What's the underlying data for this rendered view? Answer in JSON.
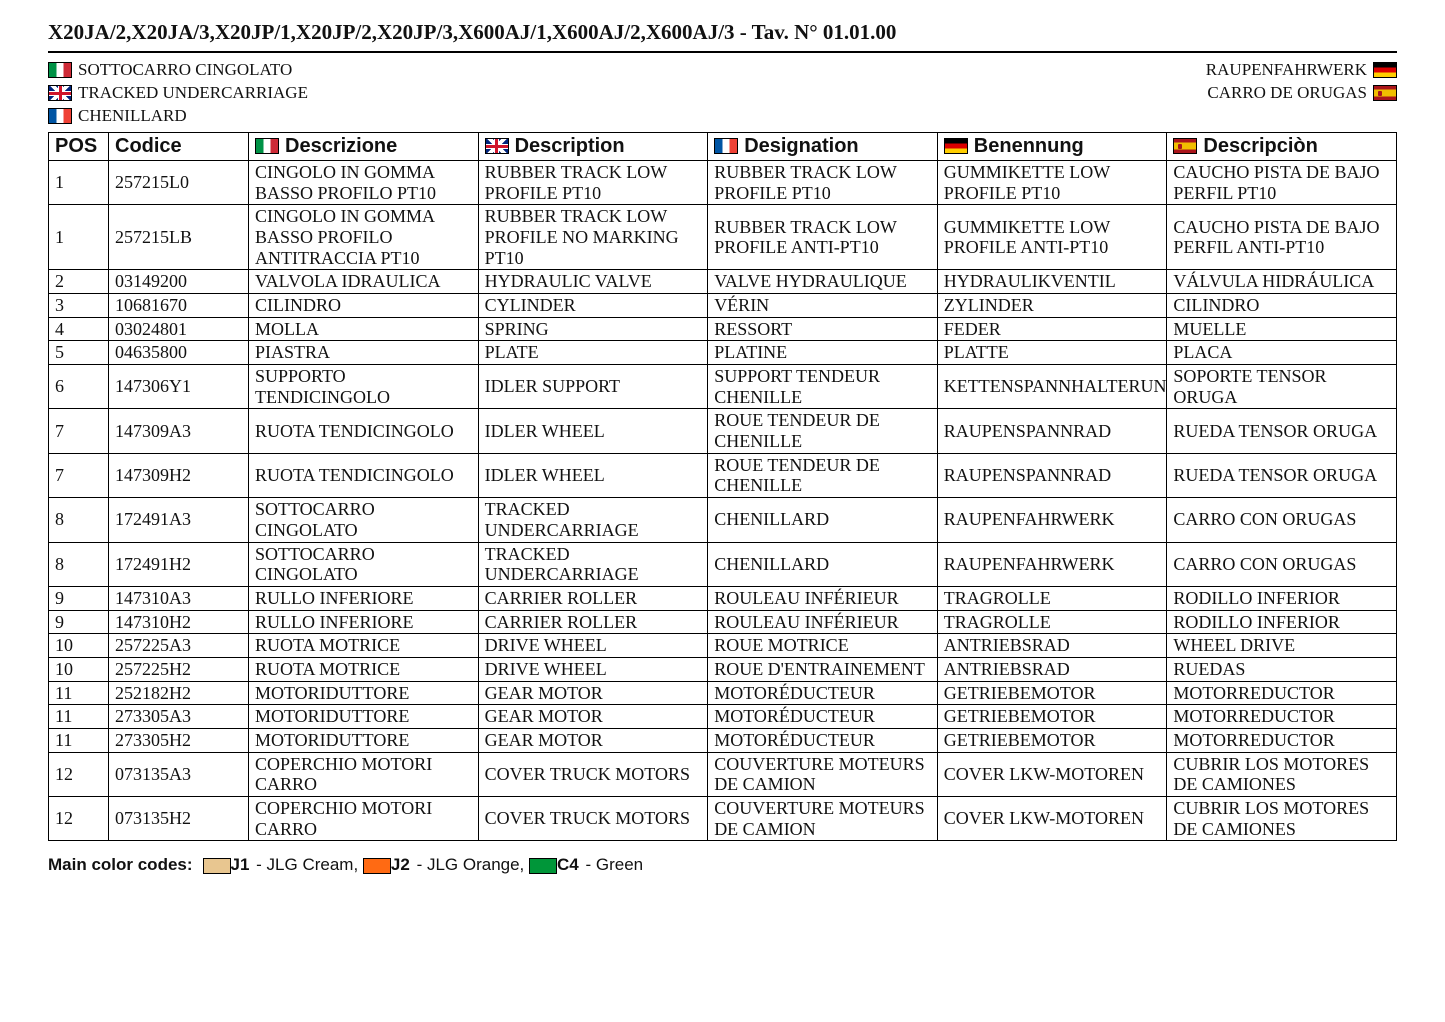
{
  "title": "X20JA/2,X20JA/3,X20JP/1,X20JP/2,X20JP/3,X600AJ/1,X600AJ/2,X600AJ/3 - Tav. N° 01.01.00",
  "subhead": {
    "it": "SOTTOCARRO CINGOLATO",
    "uk": "TRACKED UNDERCARRIAGE",
    "fr": "CHENILLARD",
    "de": "RAUPENFAHRWERK",
    "es": "CARRO DE ORUGAS"
  },
  "columns": {
    "pos": "POS",
    "cod": "Codice",
    "it": "Descrizione",
    "uk": "Description",
    "fr": "Designation",
    "de": "Benennung",
    "es": "Descripciòn"
  },
  "rows": [
    {
      "pos": "1",
      "cod": "257215L0",
      "it": "CINGOLO IN GOMMA BASSO PROFILO PT10",
      "uk": "RUBBER TRACK LOW PROFILE PT10",
      "fr": "RUBBER TRACK LOW PROFILE PT10",
      "de": "GUMMIKETTE LOW PROFILE PT10",
      "es": "CAUCHO PISTA DE BAJO PERFIL PT10"
    },
    {
      "pos": "1",
      "cod": "257215LB",
      "it": "CINGOLO IN GOMMA BASSO PROFILO ANTITRACCIA PT10",
      "uk": "RUBBER TRACK LOW PROFILE NO MARKING PT10",
      "fr": "RUBBER TRACK LOW PROFILE ANTI-PT10",
      "de": "GUMMIKETTE LOW PROFILE ANTI-PT10",
      "es": "CAUCHO PISTA DE BAJO PERFIL ANTI-PT10"
    },
    {
      "pos": "2",
      "cod": "03149200",
      "it": "VALVOLA IDRAULICA",
      "uk": "HYDRAULIC VALVE",
      "fr": "VALVE HYDRAULIQUE",
      "de": "HYDRAULIKVENTIL",
      "es": "VÁLVULA HIDRÁULICA"
    },
    {
      "pos": "3",
      "cod": "10681670",
      "it": "CILINDRO",
      "uk": "CYLINDER",
      "fr": "VÉRIN",
      "de": "ZYLINDER",
      "es": "CILINDRO"
    },
    {
      "pos": "4",
      "cod": "03024801",
      "it": "MOLLA",
      "uk": "SPRING",
      "fr": "RESSORT",
      "de": "FEDER",
      "es": "MUELLE"
    },
    {
      "pos": "5",
      "cod": "04635800",
      "it": "PIASTRA",
      "uk": "PLATE",
      "fr": "PLATINE",
      "de": "PLATTE",
      "es": "PLACA"
    },
    {
      "pos": "6",
      "cod": "147306Y1",
      "it": "SUPPORTO TENDICINGOLO",
      "uk": "IDLER SUPPORT",
      "fr": "SUPPORT TENDEUR CHENILLE",
      "de": "KETTENSPANNHALTERUNG",
      "es": "SOPORTE TENSOR ORUGA"
    },
    {
      "pos": "7",
      "cod": "147309A3",
      "it": "RUOTA TENDICINGOLO",
      "uk": "IDLER WHEEL",
      "fr": "ROUE TENDEUR DE CHENILLE",
      "de": "RAUPENSPANNRAD",
      "es": "RUEDA TENSOR ORUGA"
    },
    {
      "pos": "7",
      "cod": "147309H2",
      "it": "RUOTA TENDICINGOLO",
      "uk": "IDLER WHEEL",
      "fr": "ROUE TENDEUR DE CHENILLE",
      "de": "RAUPENSPANNRAD",
      "es": "RUEDA TENSOR ORUGA"
    },
    {
      "pos": "8",
      "cod": "172491A3",
      "it": "SOTTOCARRO CINGOLATO",
      "uk": "TRACKED UNDERCARRIAGE",
      "fr": "CHENILLARD",
      "de": "RAUPENFAHRWERK",
      "es": "CARRO CON ORUGAS"
    },
    {
      "pos": "8",
      "cod": "172491H2",
      "it": "SOTTOCARRO CINGOLATO",
      "uk": "TRACKED UNDERCARRIAGE",
      "fr": "CHENILLARD",
      "de": "RAUPENFAHRWERK",
      "es": "CARRO CON ORUGAS"
    },
    {
      "pos": "9",
      "cod": "147310A3",
      "it": "RULLO INFERIORE",
      "uk": "CARRIER ROLLER",
      "fr": "ROULEAU INFÉRIEUR",
      "de": "TRAGROLLE",
      "es": "RODILLO INFERIOR"
    },
    {
      "pos": "9",
      "cod": "147310H2",
      "it": "RULLO INFERIORE",
      "uk": "CARRIER ROLLER",
      "fr": "ROULEAU INFÉRIEUR",
      "de": "TRAGROLLE",
      "es": "RODILLO INFERIOR"
    },
    {
      "pos": "10",
      "cod": "257225A3",
      "it": "RUOTA MOTRICE",
      "uk": "DRIVE WHEEL",
      "fr": "ROUE MOTRICE",
      "de": "ANTRIEBSRAD",
      "es": "WHEEL DRIVE"
    },
    {
      "pos": "10",
      "cod": "257225H2",
      "it": "RUOTA MOTRICE",
      "uk": "DRIVE WHEEL",
      "fr": "ROUE D'ENTRAINEMENT",
      "de": "ANTRIEBSRAD",
      "es": "RUEDAS"
    },
    {
      "pos": "11",
      "cod": "252182H2",
      "it": "MOTORIDUTTORE",
      "uk": "GEAR MOTOR",
      "fr": "MOTORÉDUCTEUR",
      "de": "GETRIEBEMOTOR",
      "es": "MOTORREDUCTOR"
    },
    {
      "pos": "11",
      "cod": "273305A3",
      "it": "MOTORIDUTTORE",
      "uk": "GEAR MOTOR",
      "fr": "MOTORÉDUCTEUR",
      "de": "GETRIEBEMOTOR",
      "es": "MOTORREDUCTOR"
    },
    {
      "pos": "11",
      "cod": "273305H2",
      "it": "MOTORIDUTTORE",
      "uk": "GEAR MOTOR",
      "fr": "MOTORÉDUCTEUR",
      "de": "GETRIEBEMOTOR",
      "es": "MOTORREDUCTOR"
    },
    {
      "pos": "12",
      "cod": "073135A3",
      "it": "COPERCHIO MOTORI CARRO",
      "uk": "COVER TRUCK MOTORS",
      "fr": "COUVERTURE MOTEURS DE CAMION",
      "de": "COVER LKW-MOTOREN",
      "es": "CUBRIR LOS MOTORES DE CAMIONES"
    },
    {
      "pos": "12",
      "cod": "073135H2",
      "it": "COPERCHIO MOTORI CARRO",
      "uk": "COVER TRUCK MOTORS",
      "fr": "COUVERTURE MOTEURS DE CAMION",
      "de": "COVER LKW-MOTOREN",
      "es": "CUBRIR LOS MOTORES DE CAMIONES"
    }
  ],
  "legend": {
    "label": "Main color codes:",
    "items": [
      {
        "code": "J1",
        "name": "JLG Cream",
        "color": "#e8c690"
      },
      {
        "code": "J2",
        "name": "JLG Orange",
        "color": "#ff6a13"
      },
      {
        "code": "C4",
        "name": "Green",
        "color": "#009639"
      }
    ]
  }
}
